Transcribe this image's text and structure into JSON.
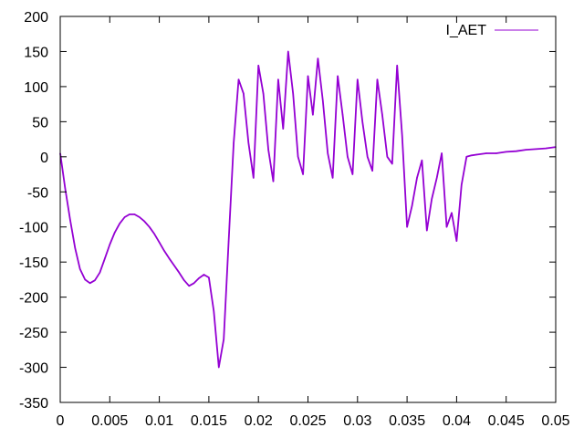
{
  "chart_data": {
    "type": "line",
    "title": "",
    "xlabel": "",
    "ylabel": "",
    "xlim": [
      0,
      0.05
    ],
    "ylim": [
      -350,
      200
    ],
    "x_ticks": [
      "0",
      "0.005",
      "0.01",
      "0.015",
      "0.02",
      "0.025",
      "0.03",
      "0.035",
      "0.04",
      "0.045",
      "0.05"
    ],
    "y_ticks": [
      "200",
      "150",
      "100",
      "50",
      "0",
      "-50",
      "-100",
      "-150",
      "-200",
      "-250",
      "-300",
      "-350"
    ],
    "grid": false,
    "legend_position": "top-right",
    "series": [
      {
        "name": "I_AET",
        "color": "#9400d3",
        "x": [
          0,
          0.0005,
          0.001,
          0.0015,
          0.002,
          0.0025,
          0.003,
          0.0035,
          0.004,
          0.0045,
          0.005,
          0.0055,
          0.006,
          0.0065,
          0.007,
          0.0075,
          0.008,
          0.0085,
          0.009,
          0.0095,
          0.01,
          0.0105,
          0.011,
          0.0115,
          0.012,
          0.0125,
          0.013,
          0.0135,
          0.014,
          0.0145,
          0.015,
          0.0155,
          0.016,
          0.0165,
          0.017,
          0.0175,
          0.018,
          0.0185,
          0.019,
          0.0195,
          0.02,
          0.0205,
          0.021,
          0.0215,
          0.022,
          0.0225,
          0.023,
          0.0235,
          0.024,
          0.0245,
          0.025,
          0.0255,
          0.026,
          0.0265,
          0.027,
          0.0275,
          0.028,
          0.0285,
          0.029,
          0.0295,
          0.03,
          0.0305,
          0.031,
          0.0315,
          0.032,
          0.0325,
          0.033,
          0.0335,
          0.034,
          0.0345,
          0.035,
          0.0355,
          0.036,
          0.0365,
          0.037,
          0.0375,
          0.038,
          0.0385,
          0.039,
          0.0395,
          0.04,
          0.0405,
          0.041,
          0.0415,
          0.042,
          0.043,
          0.044,
          0.045,
          0.046,
          0.047,
          0.048,
          0.049,
          0.05
        ],
        "y": [
          5,
          -45,
          -90,
          -130,
          -160,
          -175,
          -180,
          -176,
          -165,
          -145,
          -125,
          -108,
          -95,
          -86,
          -82,
          -82,
          -86,
          -92,
          -100,
          -110,
          -122,
          -134,
          -145,
          -155,
          -165,
          -176,
          -184,
          -180,
          -173,
          -168,
          -172,
          -220,
          -300,
          -260,
          -120,
          20,
          110,
          90,
          20,
          -30,
          130,
          90,
          10,
          -35,
          110,
          40,
          150,
          90,
          0,
          -25,
          115,
          60,
          140,
          80,
          5,
          -30,
          115,
          60,
          0,
          -25,
          110,
          50,
          0,
          -20,
          110,
          60,
          0,
          -10,
          130,
          30,
          -100,
          -70,
          -30,
          -5,
          -105,
          -60,
          -30,
          5,
          -100,
          -80,
          -120,
          -40,
          0,
          2,
          3,
          5,
          5,
          7,
          8,
          10,
          11,
          12,
          14
        ]
      }
    ]
  }
}
